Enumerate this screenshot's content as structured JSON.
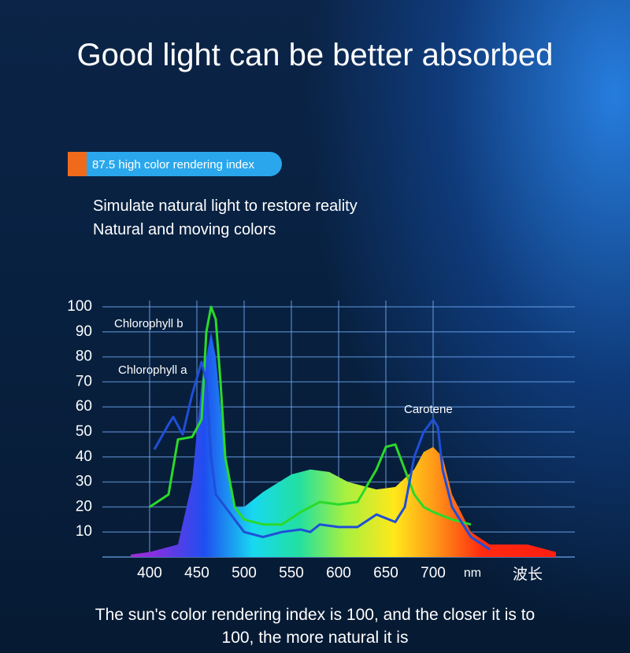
{
  "title": "Good light can be better absorbed",
  "badge": "87.5 high color rendering index",
  "description": [
    "Simulate natural light to restore reality",
    "Natural and moving colors"
  ],
  "footer": "The sun's color rendering index is 100, and the closer it is to 100, the more natural it is",
  "chart_data": {
    "type": "line",
    "xlabel": "波长",
    "x_unit": "nm",
    "xlim": [
      350,
      850
    ],
    "ylim": [
      0,
      100
    ],
    "xticks": [
      400,
      450,
      500,
      550,
      600,
      650,
      700
    ],
    "yticks": [
      10,
      20,
      30,
      40,
      50,
      60,
      70,
      80,
      90,
      100
    ],
    "grid": true,
    "annotations": [
      "Chlorophyll b",
      "Chlorophyll a",
      "Carotene"
    ],
    "series": [
      {
        "kind": "area",
        "x": [
          380,
          400,
          430,
          445,
          455,
          465,
          470,
          480,
          490,
          500,
          520,
          550,
          570,
          590,
          610,
          640,
          660,
          680,
          690,
          700,
          710,
          720,
          740,
          760,
          800,
          830
        ],
        "values": [
          1,
          2,
          5,
          30,
          70,
          90,
          80,
          40,
          20,
          20,
          26,
          33,
          35,
          34,
          30,
          27,
          28,
          35,
          42,
          44,
          40,
          25,
          10,
          5,
          5,
          2
        ]
      },
      {
        "color": "#2bd92b",
        "x": [
          400,
          420,
          430,
          445,
          455,
          460,
          465,
          470,
          475,
          480,
          490,
          500,
          520,
          540,
          560,
          580,
          600,
          620,
          640,
          650,
          660,
          670,
          680,
          690,
          700,
          720,
          740
        ],
        "values": [
          20,
          25,
          47,
          48,
          55,
          90,
          100,
          95,
          70,
          40,
          20,
          15,
          13,
          13,
          18,
          22,
          21,
          22,
          35,
          44,
          45,
          35,
          25,
          20,
          18,
          15,
          13
        ]
      },
      {
        "color": "#1f4fd8",
        "x": [
          405,
          420,
          425,
          435,
          445,
          455,
          460,
          465,
          470,
          480,
          490,
          500,
          520,
          540,
          560,
          570,
          580,
          600,
          620,
          640,
          660,
          670,
          680,
          690,
          700,
          705,
          710,
          720,
          740,
          760
        ],
        "values": [
          43,
          53,
          56,
          49,
          65,
          78,
          70,
          40,
          25,
          20,
          15,
          10,
          8,
          10,
          11,
          10,
          13,
          12,
          12,
          17,
          14,
          20,
          40,
          50,
          55,
          52,
          35,
          20,
          8,
          3
        ]
      }
    ]
  }
}
